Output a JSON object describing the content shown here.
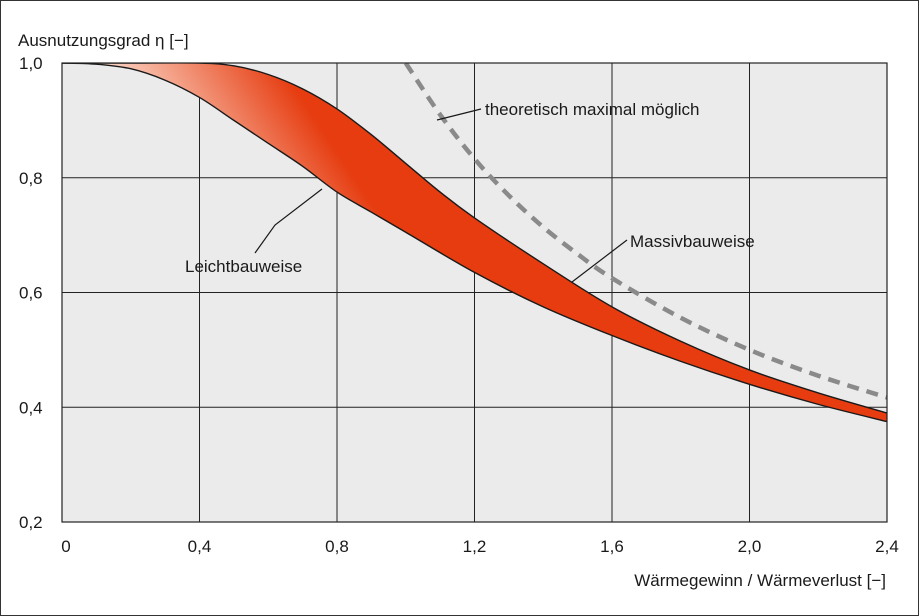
{
  "chart_data": {
    "type": "area",
    "ylabel": "Ausnutzungsgrad η  [−]",
    "xlabel": "Wärmegewinn / Wärmeverlust [−]",
    "xlim": [
      0,
      2.4
    ],
    "ylim": [
      0.2,
      1.0
    ],
    "x_ticks": [
      "0",
      "0,4",
      "0,8",
      "1,2",
      "1,6",
      "2,0",
      "2,4"
    ],
    "y_ticks": [
      "1,0",
      "0,8",
      "0,6",
      "0,4",
      "0,2"
    ],
    "grid": true,
    "series": [
      {
        "name": "Massivbauweise",
        "x": [
          0,
          0.2,
          0.4,
          0.5,
          0.6,
          0.7,
          0.8,
          0.9,
          1.0,
          1.1,
          1.2,
          1.4,
          1.6,
          1.8,
          2.0,
          2.2,
          2.4
        ],
        "y": [
          1.0,
          1.0,
          1.0,
          0.995,
          0.98,
          0.955,
          0.92,
          0.875,
          0.825,
          0.775,
          0.73,
          0.65,
          0.575,
          0.515,
          0.465,
          0.425,
          0.39
        ]
      },
      {
        "name": "Leichtbauweise",
        "x": [
          0,
          0.1,
          0.2,
          0.3,
          0.4,
          0.5,
          0.6,
          0.7,
          0.8,
          0.9,
          1.0,
          1.2,
          1.4,
          1.6,
          1.8,
          2.0,
          2.2,
          2.4
        ],
        "y": [
          1.0,
          0.998,
          0.99,
          0.97,
          0.94,
          0.9,
          0.86,
          0.82,
          0.775,
          0.74,
          0.705,
          0.635,
          0.575,
          0.525,
          0.48,
          0.44,
          0.405,
          0.375
        ]
      },
      {
        "name": "theoretisch maximal möglich",
        "x": [
          1.0,
          1.1,
          1.2,
          1.3,
          1.4,
          1.5,
          1.6,
          1.8,
          2.0,
          2.2,
          2.4
        ],
        "y": [
          1.0,
          0.91,
          0.833,
          0.769,
          0.714,
          0.667,
          0.625,
          0.556,
          0.5,
          0.455,
          0.417
        ]
      }
    ],
    "annotations": [
      "theoretisch maximal möglich",
      "Massivbauweise",
      "Leichtbauweise"
    ],
    "colors": {
      "band_dark": "#e63c10",
      "band_light": "#fde8dc",
      "plot_bg": "#ebebeb",
      "dashed": "#8a8a8a"
    }
  }
}
